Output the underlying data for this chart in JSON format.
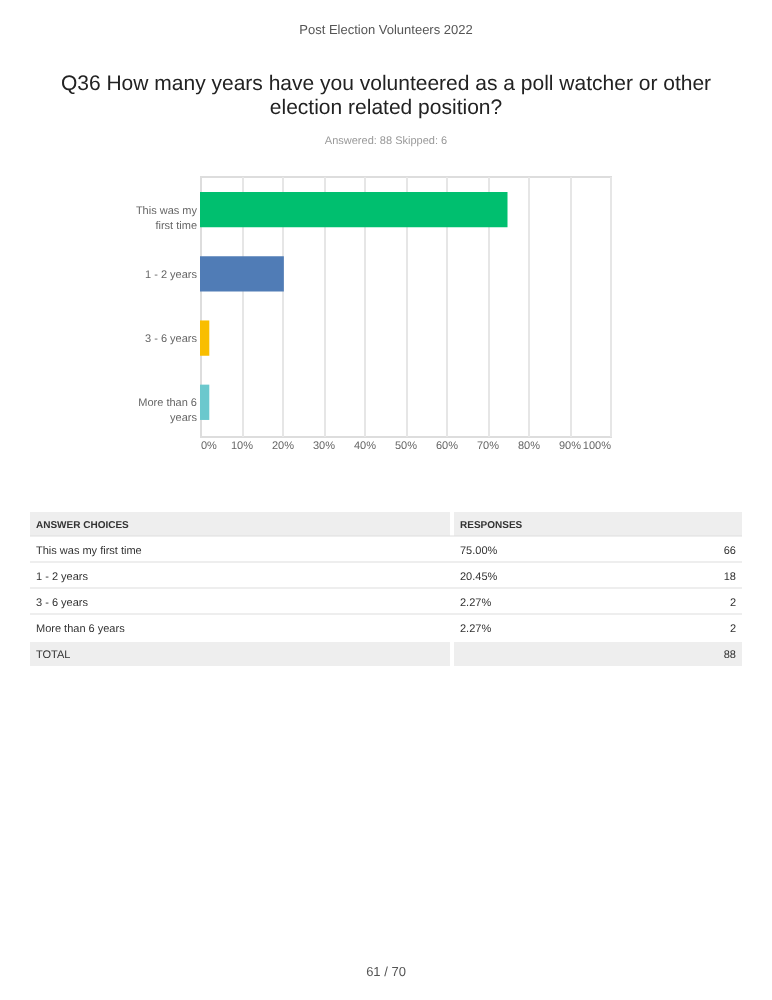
{
  "chart_data": {
    "type": "bar",
    "orientation": "horizontal",
    "title": "Q36 How many years have you volunteered as a poll watcher or other election related position?",
    "subtitle": "Answered: 88    Skipped: 6",
    "categories": [
      "This was my first time",
      "1 - 2 years",
      "3 - 6 years",
      "More than 6 years"
    ],
    "values": [
      75.0,
      20.45,
      2.27,
      2.27
    ],
    "colors": [
      "#00bf6f",
      "#507cb6",
      "#f9be00",
      "#6bc8cd"
    ],
    "xlim": [
      0,
      100
    ],
    "xticks": [
      {
        "value": 0,
        "label": "0%"
      },
      {
        "value": 10,
        "label": "10%"
      },
      {
        "value": 20,
        "label": "20%"
      },
      {
        "value": 30,
        "label": "30%"
      },
      {
        "value": 40,
        "label": "40%"
      },
      {
        "value": 50,
        "label": "50%"
      },
      {
        "value": 60,
        "label": "60%"
      },
      {
        "value": 70,
        "label": "70%"
      },
      {
        "value": 80,
        "label": "80%"
      },
      {
        "value": 90,
        "label": "90%"
      },
      {
        "value": 100,
        "label": "100%"
      }
    ],
    "grid": "x",
    "legend": false,
    "annotations": [
      "Post Election Volunteers 2022",
      "ANSWER CHOICES",
      "RESPONSES",
      "66",
      "18",
      "2",
      "2",
      "TOTAL",
      "88",
      "61 / 70",
      "75.00%",
      "20.45%",
      "2.27%",
      "2.27%"
    ]
  }
}
